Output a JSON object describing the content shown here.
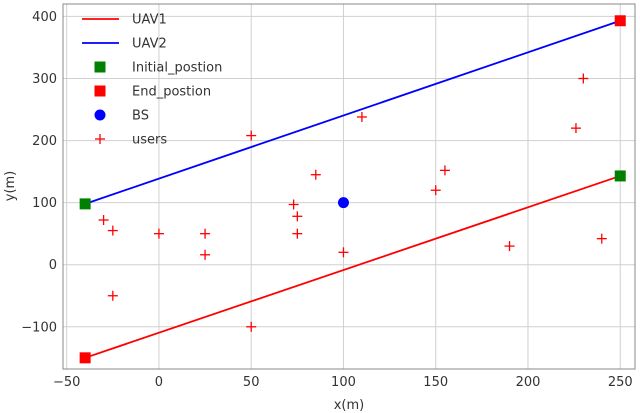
{
  "chart_data": {
    "type": "line",
    "title": "",
    "xlabel": "x(m)",
    "ylabel": "y(m)",
    "xlim": [
      -52,
      258
    ],
    "ylim": [
      -168,
      420
    ],
    "x_ticks": [
      -50,
      0,
      50,
      100,
      150,
      200,
      250
    ],
    "y_ticks": [
      -100,
      0,
      100,
      200,
      300,
      400
    ],
    "x_tick_labels": [
      "−50",
      "0",
      "50",
      "100",
      "150",
      "200",
      "250"
    ],
    "y_tick_labels": [
      "−100",
      "0",
      "100",
      "200",
      "300",
      "400"
    ],
    "grid": true,
    "legend_position": "top-left",
    "colors": {
      "uav1": "#ff0000",
      "uav2": "#0000ff",
      "initial": "#008000",
      "end": "#ff0000",
      "bs": "#0000ff",
      "users": "#ff0000",
      "grid": "#d0d0d0",
      "frame": "#888888"
    },
    "series": [
      {
        "name": "UAV1",
        "kind": "line",
        "color_key": "uav1",
        "points": [
          [
            -40,
            -150
          ],
          [
            250,
            143
          ]
        ]
      },
      {
        "name": "UAV2",
        "kind": "line",
        "color_key": "uav2",
        "points": [
          [
            -40,
            98
          ],
          [
            250,
            393
          ]
        ]
      },
      {
        "name": "Initial_postion",
        "kind": "square",
        "color_key": "initial",
        "points": [
          [
            -40,
            98
          ],
          [
            250,
            143
          ]
        ]
      },
      {
        "name": "End_postion",
        "kind": "square",
        "color_key": "end",
        "points": [
          [
            -40,
            -150
          ],
          [
            250,
            393
          ]
        ]
      },
      {
        "name": "BS",
        "kind": "circle",
        "color_key": "bs",
        "points": [
          [
            100,
            100
          ]
        ]
      },
      {
        "name": "users",
        "kind": "plus",
        "color_key": "users",
        "points": [
          [
            -30,
            72
          ],
          [
            -25,
            55
          ],
          [
            -25,
            -50
          ],
          [
            0,
            50
          ],
          [
            25,
            50
          ],
          [
            25,
            16
          ],
          [
            50,
            208
          ],
          [
            50,
            -100
          ],
          [
            73,
            97
          ],
          [
            75,
            78
          ],
          [
            75,
            50
          ],
          [
            85,
            145
          ],
          [
            100,
            20
          ],
          [
            110,
            238
          ],
          [
            150,
            120
          ],
          [
            155,
            152
          ],
          [
            190,
            30
          ],
          [
            226,
            220
          ],
          [
            230,
            300
          ],
          [
            240,
            42
          ]
        ]
      }
    ]
  }
}
